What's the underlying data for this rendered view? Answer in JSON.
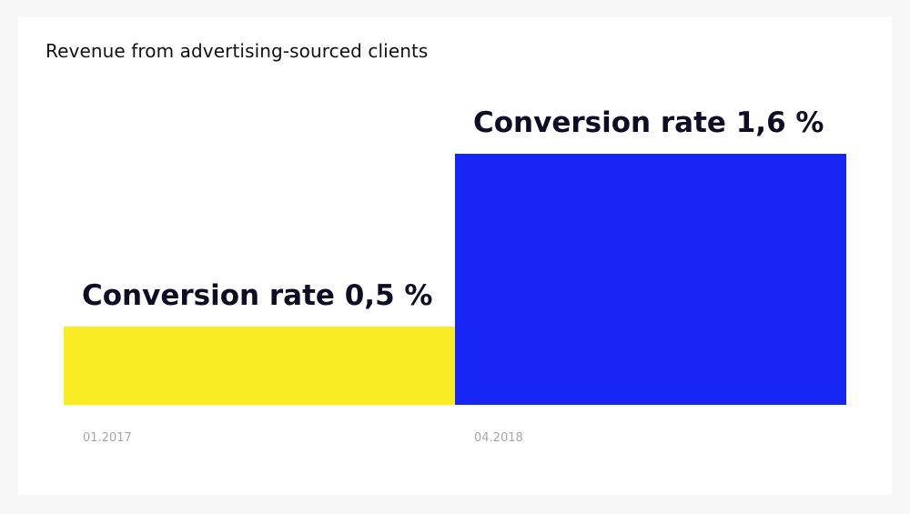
{
  "chart_data": {
    "type": "bar",
    "title": "Revenue from advertising-sourced clients",
    "categories": [
      "01.2017",
      "04.2018"
    ],
    "values": [
      0.5,
      1.6
    ],
    "value_labels": [
      "Conversion rate 0,5 %",
      "Conversion rate 1,6 %"
    ],
    "colors": [
      "#f9ec24",
      "#1726f5"
    ],
    "ylim": [
      0,
      2.0
    ],
    "grid": false,
    "legend": "none",
    "xlabel": "",
    "ylabel": ""
  }
}
